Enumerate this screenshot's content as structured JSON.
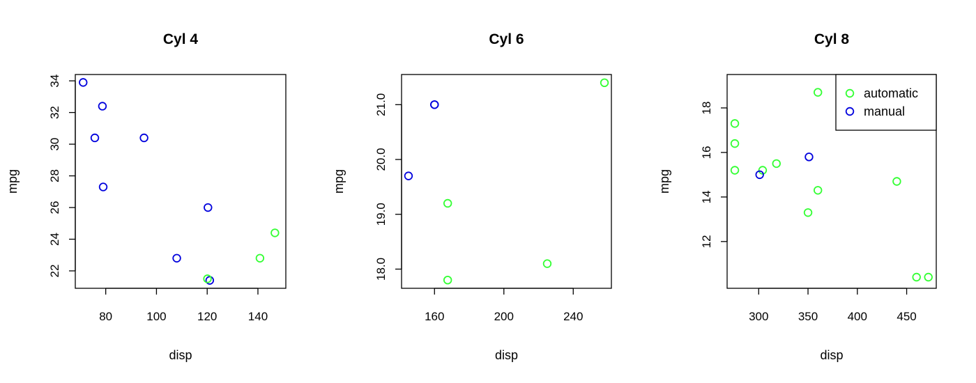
{
  "colors": {
    "automatic": "#33ff33",
    "manual": "#0000dd"
  },
  "chart_data": [
    {
      "type": "scatter",
      "title": "Cyl 4",
      "xlabel": "disp",
      "ylabel": "mpg",
      "xlim": [
        68,
        151
      ],
      "ylim": [
        20.9,
        34.4
      ],
      "xticks": [
        80,
        100,
        120,
        140
      ],
      "yticks": [
        22,
        24,
        26,
        28,
        30,
        32,
        34
      ],
      "series": [
        {
          "key": "manual",
          "points": [
            [
              71.1,
              33.9
            ],
            [
              78.7,
              32.4
            ],
            [
              75.7,
              30.4
            ],
            [
              95.1,
              30.4
            ],
            [
              79.0,
              27.3
            ],
            [
              120.3,
              26.0
            ],
            [
              108.0,
              22.8
            ],
            [
              121.0,
              21.4
            ]
          ]
        },
        {
          "key": "automatic",
          "points": [
            [
              146.7,
              24.4
            ],
            [
              140.8,
              22.8
            ],
            [
              120.1,
              21.5
            ]
          ]
        }
      ]
    },
    {
      "type": "scatter",
      "title": "Cyl 6",
      "xlabel": "disp",
      "ylabel": "mpg",
      "xlim": [
        141,
        262
      ],
      "ylim": [
        17.65,
        21.55
      ],
      "xticks": [
        160,
        200,
        240
      ],
      "yticks": [
        18.0,
        19.0,
        20.0,
        21.0
      ],
      "ytick_labels": [
        "18.0",
        "19.0",
        "20.0",
        "21.0"
      ],
      "series": [
        {
          "key": "manual",
          "points": [
            [
              160,
              21.0
            ],
            [
              160,
              21.0
            ],
            [
              145,
              19.7
            ]
          ]
        },
        {
          "key": "automatic",
          "points": [
            [
              258,
              21.4
            ],
            [
              167.6,
              19.2
            ],
            [
              225,
              18.1
            ],
            [
              167.6,
              17.8
            ]
          ]
        }
      ]
    },
    {
      "type": "scatter",
      "title": "Cyl 8",
      "xlabel": "disp",
      "ylabel": "mpg",
      "xlim": [
        268,
        480
      ],
      "ylim": [
        9.9,
        19.5
      ],
      "xticks": [
        300,
        350,
        400,
        450
      ],
      "yticks": [
        12,
        14,
        16,
        18
      ],
      "legend": {
        "position": "top-right",
        "entries": [
          {
            "key": "automatic",
            "label": "automatic"
          },
          {
            "key": "manual",
            "label": "manual"
          }
        ]
      },
      "series": [
        {
          "key": "automatic",
          "points": [
            [
              360,
              18.7
            ],
            [
              275.8,
              17.3
            ],
            [
              275.8,
              16.4
            ],
            [
              275.8,
              15.2
            ],
            [
              304,
              15.2
            ],
            [
              318,
              15.5
            ],
            [
              360,
              14.3
            ],
            [
              350,
              13.3
            ],
            [
              440,
              14.7
            ],
            [
              460,
              10.4
            ],
            [
              472,
              10.4
            ]
          ]
        },
        {
          "key": "manual",
          "points": [
            [
              351,
              15.8
            ],
            [
              301,
              15.0
            ]
          ]
        }
      ]
    }
  ]
}
